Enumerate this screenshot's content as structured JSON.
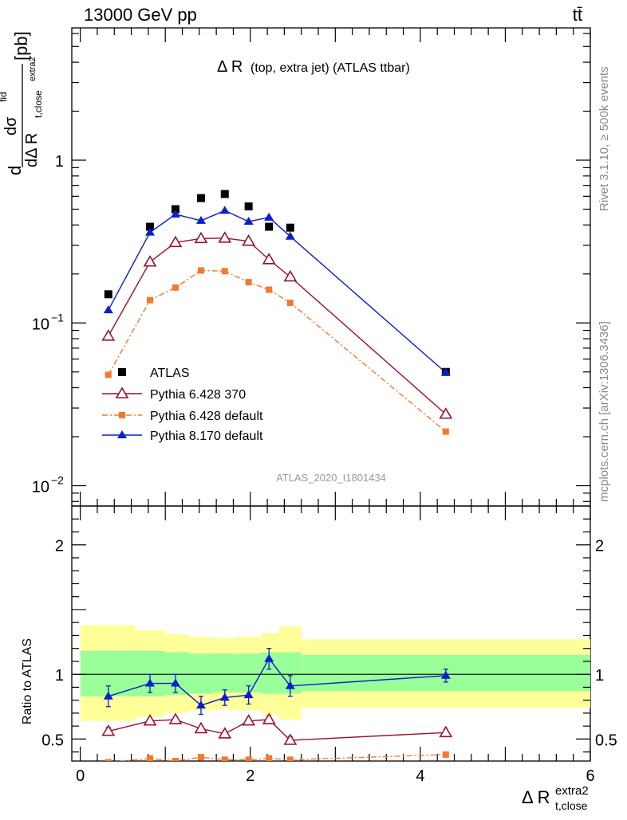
{
  "header": {
    "left": "13000 GeV pp",
    "right": "tt̄"
  },
  "side": {
    "rivet": "Rivet 3.1.10, ≥ 500k events",
    "mcplots": "mcplots.cern.ch [arXiv:1306.3436]"
  },
  "plot": {
    "title_main": "Δ R",
    "title_sub": "(top, extra jet) (ATLAS ttbar)",
    "watermark": "ATLAS_2020_I1801434",
    "ylabel_prefix": "d",
    "ylabel_num": "dσ",
    "ylabel_num_sup": "fid",
    "ylabel_den": "dΔ R",
    "ylabel_den_sub": "t,close",
    "ylabel_den_sup": "extra2",
    "ylabel_unit": "[pb]",
    "ratio_ylabel": "Ratio to ATLAS",
    "xlabel_main": "Δ R",
    "xlabel_sup": "extra2",
    "xlabel_sub": "t,close",
    "main_ticks": [
      {
        "v": 1,
        "label": "1"
      },
      {
        "v": 0.1,
        "label": "10",
        "exp": "−1"
      },
      {
        "v": 0.01,
        "label": "10",
        "exp": "−2"
      }
    ],
    "ratio_ticks": [
      {
        "v": 2,
        "label": "2"
      },
      {
        "v": 1,
        "label": "1"
      },
      {
        "v": 0.5,
        "label": "0.5"
      }
    ],
    "x_ticks": [
      {
        "v": 0,
        "label": "0"
      },
      {
        "v": 2,
        "label": "2"
      },
      {
        "v": 4,
        "label": "4"
      },
      {
        "v": 6,
        "label": "6"
      }
    ]
  },
  "chart_data": {
    "type": "scatter",
    "x_range": [
      -0.1,
      6.0
    ],
    "main_yscale": "log",
    "main_ylim": [
      0.0075,
      6.5
    ],
    "ratio_ylim": [
      0.33,
      2.3
    ],
    "legend_position": "bottom-left",
    "x": [
      0.33,
      0.82,
      1.12,
      1.42,
      1.7,
      1.98,
      2.22,
      2.47,
      4.3
    ],
    "series": [
      {
        "name": "ATLAS",
        "color": "#000000",
        "marker": "square",
        "values": [
          0.15,
          0.39,
          0.5,
          0.585,
          0.62,
          0.52,
          0.39,
          0.385,
          0.05
        ]
      },
      {
        "name": "Pythia 6.428 370",
        "color": "#9b0f2e",
        "marker": "triangle-open",
        "values": [
          0.083,
          0.237,
          0.312,
          0.33,
          0.332,
          0.318,
          0.245,
          0.192,
          0.0275
        ],
        "ratio": [
          0.56,
          0.64,
          0.65,
          0.58,
          0.54,
          0.64,
          0.65,
          0.49,
          0.55
        ],
        "ratio_err": [
          0.03,
          0.02,
          0.02,
          0.02,
          0.02,
          0.02,
          0.03,
          0.03,
          0.02
        ]
      },
      {
        "name": "Pythia 6.428 default",
        "color": "#f5782c",
        "marker": "square-small",
        "values": [
          0.048,
          0.138,
          0.165,
          0.21,
          0.208,
          0.178,
          0.16,
          0.133,
          0.0215
        ],
        "ratio": [
          0.32,
          0.35,
          0.33,
          0.36,
          0.34,
          0.34,
          0.35,
          0.34,
          0.38
        ],
        "ratio_err": [
          0.02,
          0.02,
          0.02,
          0.02,
          0.02,
          0.02,
          0.02,
          0.02,
          0.02
        ]
      },
      {
        "name": "Pythia 8.170 default",
        "color": "#0a1ecc",
        "marker": "triangle-filled",
        "values": [
          0.12,
          0.36,
          0.465,
          0.425,
          0.49,
          0.42,
          0.445,
          0.34,
          0.0495
        ],
        "ratio": [
          0.83,
          0.93,
          0.93,
          0.76,
          0.82,
          0.84,
          1.12,
          0.91,
          0.99
        ],
        "ratio_err": [
          0.08,
          0.07,
          0.07,
          0.07,
          0.06,
          0.07,
          0.08,
          0.08,
          0.05
        ]
      }
    ],
    "bands": {
      "bins": [
        0.0,
        0.65,
        1.0,
        1.28,
        1.57,
        1.83,
        2.13,
        2.34,
        2.6,
        6.0
      ],
      "inner": [
        [
          0.83,
          1.18
        ],
        [
          0.83,
          1.18
        ],
        [
          0.84,
          1.17
        ],
        [
          0.85,
          1.16
        ],
        [
          0.86,
          1.16
        ],
        [
          0.86,
          1.16
        ],
        [
          0.85,
          1.17
        ],
        [
          0.85,
          1.17
        ],
        [
          0.87,
          1.15
        ]
      ],
      "outer": [
        [
          0.64,
          1.38
        ],
        [
          0.67,
          1.34
        ],
        [
          0.7,
          1.31
        ],
        [
          0.72,
          1.29
        ],
        [
          0.73,
          1.28
        ],
        [
          0.72,
          1.29
        ],
        [
          0.69,
          1.32
        ],
        [
          0.65,
          1.37
        ],
        [
          0.74,
          1.27
        ]
      ]
    }
  }
}
